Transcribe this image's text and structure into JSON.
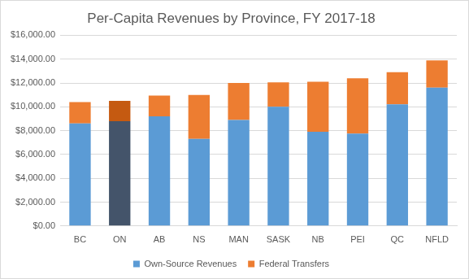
{
  "chart_data": {
    "type": "bar",
    "title": "Per-Capita Revenues by Province, FY 2017-18",
    "categories": [
      "BC",
      "ON",
      "AB",
      "NS",
      "MAN",
      "SASK",
      "NB",
      "PEI",
      "QC",
      "NFLD"
    ],
    "stacked": true,
    "grid": true,
    "legend": "bottom",
    "series": [
      {
        "name": "Own-Source Revenues",
        "color": "#5b9bd5",
        "colors": [
          "#5b9bd5",
          "#44546a",
          "#5b9bd5",
          "#5b9bd5",
          "#5b9bd5",
          "#5b9bd5",
          "#5b9bd5",
          "#5b9bd5",
          "#5b9bd5",
          "#5b9bd5"
        ],
        "values": [
          8600,
          8800,
          9200,
          7300,
          8900,
          10000,
          7900,
          7750,
          10200,
          11600
        ]
      },
      {
        "name": "Federal Transfers",
        "color": "#ed7d31",
        "colors": [
          "#ed7d31",
          "#c55a11",
          "#ed7d31",
          "#ed7d31",
          "#ed7d31",
          "#ed7d31",
          "#ed7d31",
          "#ed7d31",
          "#ed7d31",
          "#ed7d31"
        ],
        "values": [
          1800,
          1700,
          1750,
          3700,
          3100,
          2050,
          4200,
          4650,
          2700,
          2300
        ]
      }
    ],
    "ylim": [
      0,
      16000
    ],
    "yticks": [
      {
        "value": 0,
        "label": "$0.00"
      },
      {
        "value": 2000,
        "label": "$2,000.00"
      },
      {
        "value": 4000,
        "label": "$4,000.00"
      },
      {
        "value": 6000,
        "label": "$6,000.00"
      },
      {
        "value": 8000,
        "label": "$8,000.00"
      },
      {
        "value": 10000,
        "label": "$10,000.00"
      },
      {
        "value": 12000,
        "label": "$12,000.00"
      },
      {
        "value": 14000,
        "label": "$14,000.00"
      },
      {
        "value": 16000,
        "label": "$16,000.00"
      }
    ]
  }
}
